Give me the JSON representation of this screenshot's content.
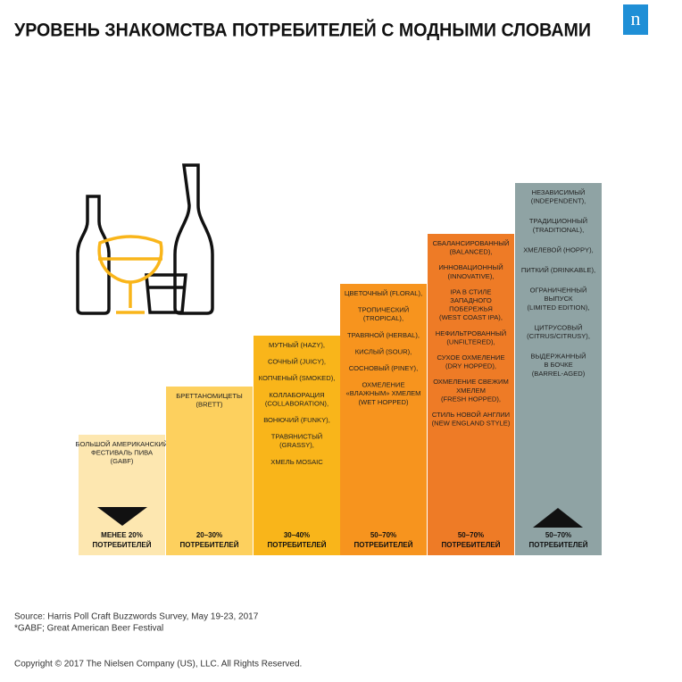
{
  "header": {
    "title": "УРОВЕНЬ ЗНАКОМСТВА ПОТРЕБИТЕЛЕЙ С МОДНЫМИ СЛОВАМИ",
    "logo": "n"
  },
  "columns": [
    {
      "items": [
        [
          "БОЛЬШОЙ АМЕРИКАНСКИЙ",
          "ФЕСТИВАЛЬ ПИВА",
          "(GABF)"
        ]
      ],
      "label": [
        "МЕНЕЕ 20%",
        "ПОТРЕБИТЕЛЕЙ"
      ]
    },
    {
      "items": [
        [
          "БРЕТТАНОМИЦЕТЫ",
          "(BRETT)"
        ]
      ],
      "label": [
        "20–30%",
        "ПОТРЕБИТЕЛЕЙ"
      ]
    },
    {
      "items": [
        [
          "МУТНЫЙ (HAZY),"
        ],
        [
          "СОЧНЫЙ (JUICY),"
        ],
        [
          "КОПЧЕНЫЙ (SMOKED),"
        ],
        [
          "КОЛЛАБОРАЦИЯ",
          "(COLLABORATION),"
        ],
        [
          "ВОНЮЧИЙ (FUNKY),"
        ],
        [
          "ТРАВЯНИСТЫЙ",
          "(GRASSY),"
        ],
        [
          "ХМЕЛЬ MOSAIC"
        ]
      ],
      "label": [
        "30–40%",
        "ПОТРЕБИТЕЛЕЙ"
      ]
    },
    {
      "items": [
        [
          "ЦВЕТОЧНЫЙ (FLORAL),"
        ],
        [
          "ТРОПИЧЕСКИЙ",
          "(TROPICAL),"
        ],
        [
          "ТРАВЯНОЙ (HERBAL),"
        ],
        [
          "КИСЛЫЙ (SOUR),"
        ],
        [
          "СОСНОВЫЙ (PINEY),"
        ],
        [
          "ОХМЕЛЕНИЕ",
          "«ВЛАЖНЫМ» ХМЕЛЕМ",
          "(WET HOPPED)"
        ]
      ],
      "label": [
        "50–70%",
        "ПОТРЕБИТЕЛЕЙ"
      ]
    },
    {
      "items": [
        [
          "СБАЛАНСИРОВАННЫЙ",
          "(BALANCED),"
        ],
        [
          "ИННОВАЦИОННЫЙ",
          "(INNOVATIVE),"
        ],
        [
          "IPA В СТИЛЕ",
          "ЗАПАДНОГО",
          "ПОБЕРЕЖЬЯ",
          "(WEST COAST IPA),"
        ],
        [
          "НЕФИЛЬТРОВАННЫЙ",
          "(UNFILTERED),"
        ],
        [
          "СУХОЕ ОХМЕЛЕНИЕ",
          "(DRY HOPPED),"
        ],
        [
          "ОХМЕЛЕНИЕ СВЕЖИМ",
          "ХМЕЛЕМ",
          "(FRESH HOPPED),"
        ],
        [
          "СТИЛЬ НОВОЙ АНГЛИИ",
          "(NEW ENGLAND STYLE)"
        ]
      ],
      "label": [
        "50–70%",
        "ПОТРЕБИТЕЛЕЙ"
      ]
    },
    {
      "items": [
        [
          "НЕЗАВИСИМЫЙ",
          "(INDEPENDENT),"
        ],
        [
          "ТРАДИЦИОННЫЙ",
          "(TRADITIONAL),"
        ],
        [
          "ХМЕЛЕВОЙ (HOPPY),"
        ],
        [
          "ПИТКИЙ (DRINKABLE),"
        ],
        [
          "ОГРАНИЧЕННЫЙ",
          "ВЫПУСК",
          "(LIMITED EDITION),"
        ],
        [
          "ЦИТРУСОВЫЙ",
          "(CITRUS/CITRUSY),"
        ],
        [
          "ВЫДЕРЖАННЫЙ",
          "В БОЧКЕ",
          "(BARREL-AGED)"
        ]
      ],
      "label": [
        "50–70%",
        "ПОТРЕБИТЕЛЕЙ"
      ]
    }
  ],
  "footer": {
    "source": "Source:  Harris Poll Craft Buzzwords Survey, May 19-23, 2017",
    "note": "*GABF; Great American Beer Festival",
    "copyright": "Copyright © 2017 The Nielsen Company (US), LLC. All Rights Reserved."
  }
}
